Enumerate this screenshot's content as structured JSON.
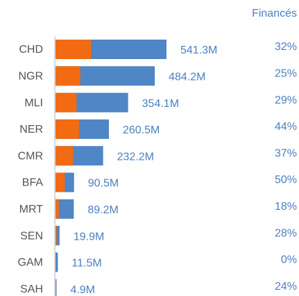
{
  "chart_data": {
    "type": "bar",
    "orientation": "horizontal",
    "categories": [
      "CHD",
      "NGR",
      "MLI",
      "NER",
      "CMR",
      "BFA",
      "MRT",
      "SEN",
      "GAM",
      "SAH"
    ],
    "values": [
      541.3,
      484.2,
      354.1,
      260.5,
      232.2,
      90.5,
      89.2,
      19.9,
      11.5,
      4.9
    ],
    "value_labels": [
      "541.3M",
      "484.2M",
      "354.1M",
      "260.5M",
      "232.2M",
      "90.5M",
      "89.2M",
      "19.9M",
      "11.5M",
      "4.9M"
    ],
    "funded_header": "Financés",
    "funded_pct": [
      32,
      25,
      29,
      44,
      37,
      50,
      18,
      28,
      0,
      24
    ],
    "funded_pct_labels": [
      "32%",
      "25%",
      "29%",
      "44%",
      "37%",
      "50%",
      "18%",
      "28%",
      "0%",
      "24%"
    ],
    "color": "#4f86c6",
    "funded_color": "#f26b12"
  }
}
